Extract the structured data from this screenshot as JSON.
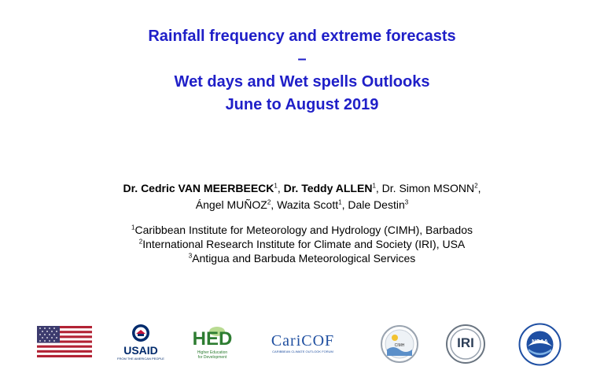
{
  "title": {
    "line1": "Rainfall frequency and extreme forecasts",
    "line2": "–",
    "line3": "Wet days and Wet spells Outlooks",
    "line4": "June to August 2019"
  },
  "authors": {
    "a1": "Dr. Cedric VAN MEERBEECK",
    "a1_sup": "1",
    "a2": "Dr. Teddy ALLEN",
    "a2_sup": "1",
    "a3": "Dr. Simon MSONN",
    "a3_sup": "2",
    "a4": "Ángel MUÑOZ",
    "a4_sup": "2",
    "a5": "Wazita Scott",
    "a5_sup": "1",
    "a6": "Dale Destin",
    "a6_sup": "3"
  },
  "affiliations": [
    {
      "num": "1",
      "text": "Caribbean Institute for Meteorology and Hydrology (CIMH), Barbados"
    },
    {
      "num": "2",
      "text": "International Research Institute for Climate and Society (IRI), USA"
    },
    {
      "num": "3",
      "text": "Antigua and Barbuda Meteorological Services"
    }
  ],
  "logos": {
    "usaid": "USAID",
    "usaid_sub": "FROM THE AMERICAN PEOPLE",
    "hed": "HED",
    "hed_sub1": "Higher Education",
    "hed_sub2": "for Development",
    "caricof": "CariCOF",
    "caricof_sub": "CARIBBEAN CLIMATE OUTLOOK FORUM",
    "cimh": "CIMH",
    "iri": "IRI",
    "noaa": "NOAA",
    "colors": {
      "title_blue": "#1f1fc8",
      "flag_red": "#b22234",
      "flag_blue": "#3c3b6e",
      "usaid_blue": "#002a6c",
      "usaid_red": "#c2113a",
      "hed_green": "#2e7d32",
      "caricof_blue": "#1f4fa0",
      "noaa_blue": "#1e4fa3"
    }
  }
}
